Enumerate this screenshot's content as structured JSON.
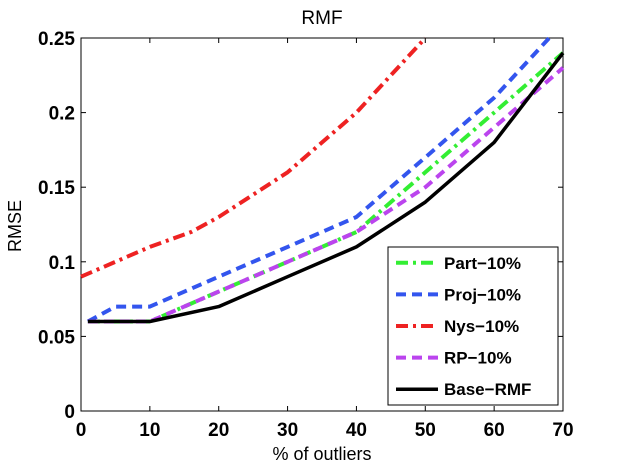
{
  "chart_data": {
    "type": "line",
    "title": "RMF",
    "xlabel": "% of outliers",
    "ylabel": "RMSE",
    "xlim": [
      0,
      70
    ],
    "ylim": [
      0,
      0.25
    ],
    "xticks": [
      0,
      10,
      20,
      30,
      40,
      50,
      60,
      70
    ],
    "yticks": [
      0,
      0.05,
      0.1,
      0.15,
      0.2,
      0.25
    ],
    "xtick_labels": [
      "0",
      "10",
      "20",
      "30",
      "40",
      "50",
      "60",
      "70"
    ],
    "ytick_labels": [
      "0",
      "0.05",
      "0.1",
      "0.15",
      "0.2",
      "0.25"
    ],
    "grid": false,
    "legend_position": "bottom-right",
    "series": [
      {
        "name": "Part−10%",
        "color": "#33ee33",
        "dash": "dashdot",
        "x": [
          1,
          10,
          20,
          30,
          40,
          50,
          60,
          70
        ],
        "y": [
          0.06,
          0.06,
          0.08,
          0.1,
          0.12,
          0.16,
          0.2,
          0.24
        ]
      },
      {
        "name": "Proj−10%",
        "color": "#3355ee",
        "dash": "dashed",
        "x": [
          1,
          5,
          10,
          20,
          30,
          40,
          50,
          60,
          68
        ],
        "y": [
          0.06,
          0.07,
          0.07,
          0.09,
          0.11,
          0.13,
          0.17,
          0.21,
          0.25
        ]
      },
      {
        "name": "Nys−10%",
        "color": "#ee2222",
        "dash": "dashdot",
        "x": [
          0,
          10,
          16,
          20,
          30,
          40,
          50
        ],
        "y": [
          0.09,
          0.11,
          0.12,
          0.13,
          0.16,
          0.2,
          0.25
        ]
      },
      {
        "name": "RP−10%",
        "color": "#bb44ee",
        "dash": "dashed",
        "x": [
          1,
          10,
          20,
          30,
          40,
          50,
          60,
          70
        ],
        "y": [
          0.06,
          0.06,
          0.08,
          0.1,
          0.12,
          0.15,
          0.19,
          0.23
        ]
      },
      {
        "name": "Base−RMF",
        "color": "#000000",
        "dash": "solid",
        "x": [
          1,
          10,
          20,
          30,
          40,
          50,
          60,
          70
        ],
        "y": [
          0.06,
          0.06,
          0.07,
          0.09,
          0.11,
          0.14,
          0.18,
          0.24
        ]
      }
    ]
  }
}
